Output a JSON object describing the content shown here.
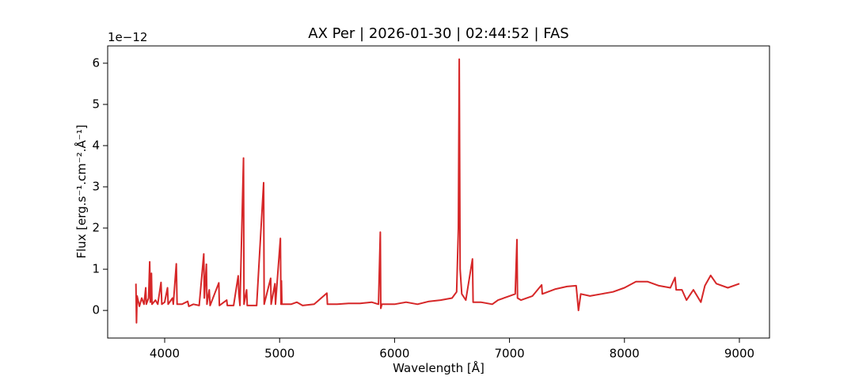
{
  "chart_data": {
    "type": "line",
    "title": "AX Per | 2026-01-30 | 02:44:52 | FAS",
    "x_label": "Wavelength [Å]",
    "y_label": "Flux [erg.s⁻¹.cm⁻².Å⁻¹]",
    "y_offset_label": "1e−12",
    "color": "#d62728",
    "x": [
      3750,
      3755,
      3760,
      3780,
      3800,
      3820,
      3835,
      3840,
      3860,
      3870,
      3875,
      3885,
      3890,
      3920,
      3940,
      3968,
      3975,
      4000,
      4025,
      4030,
      4068,
      4075,
      4101,
      4108,
      4150,
      4200,
      4210,
      4250,
      4300,
      4340,
      4345,
      4363,
      4368,
      4388,
      4395,
      4471,
      4476,
      4540,
      4545,
      4600,
      4640,
      4645,
      4655,
      4686,
      4690,
      4713,
      4718,
      4800,
      4861,
      4866,
      4922,
      4926,
      4959,
      4964,
      5007,
      5012,
      5016,
      5020,
      5100,
      5150,
      5200,
      5300,
      5411,
      5416,
      5500,
      5600,
      5700,
      5800,
      5860,
      5876,
      5880,
      5890,
      6000,
      6100,
      6200,
      6300,
      6400,
      6500,
      6540,
      6555,
      6563,
      6570,
      6585,
      6620,
      6678,
      6683,
      6750,
      6850,
      6900,
      7000,
      7050,
      7065,
      7070,
      7100,
      7200,
      7280,
      7285,
      7400,
      7500,
      7580,
      7600,
      7620,
      7700,
      7800,
      7900,
      8000,
      8100,
      8200,
      8300,
      8400,
      8440,
      8450,
      8500,
      8540,
      8600,
      8665,
      8700,
      8750,
      8800,
      8900,
      9000
    ],
    "values": [
      0.65,
      -0.3,
      0.35,
      0.1,
      0.3,
      0.15,
      0.55,
      0.15,
      0.3,
      1.18,
      0.2,
      0.9,
      0.15,
      0.25,
      0.15,
      0.68,
      0.15,
      0.2,
      0.55,
      0.15,
      0.3,
      0.15,
      1.13,
      0.15,
      0.15,
      0.22,
      0.1,
      0.15,
      0.12,
      1.37,
      0.3,
      1.12,
      0.15,
      0.5,
      0.12,
      0.67,
      0.12,
      0.25,
      0.12,
      0.12,
      0.84,
      0.4,
      0.12,
      3.7,
      0.15,
      0.5,
      0.12,
      0.12,
      3.1,
      0.15,
      0.78,
      0.15,
      0.65,
      0.15,
      1.75,
      0.15,
      0.72,
      0.15,
      0.15,
      0.2,
      0.12,
      0.15,
      0.42,
      0.15,
      0.15,
      0.17,
      0.17,
      0.2,
      0.15,
      1.9,
      0.05,
      0.15,
      0.15,
      0.2,
      0.15,
      0.22,
      0.25,
      0.3,
      0.45,
      2.0,
      6.1,
      1.0,
      0.4,
      0.25,
      1.25,
      0.2,
      0.2,
      0.15,
      0.25,
      0.35,
      0.4,
      1.72,
      0.3,
      0.25,
      0.35,
      0.62,
      0.4,
      0.52,
      0.58,
      0.6,
      0.0,
      0.4,
      0.35,
      0.4,
      0.45,
      0.55,
      0.7,
      0.7,
      0.6,
      0.55,
      0.8,
      0.5,
      0.5,
      0.25,
      0.5,
      0.2,
      0.6,
      0.85,
      0.65,
      0.55,
      0.65
    ],
    "xlim": [
      3504,
      9262
    ],
    "ylim": [
      -0.67,
      6.42
    ],
    "xticks": [
      4000,
      5000,
      6000,
      7000,
      8000,
      9000
    ],
    "yticks": [
      0,
      1,
      2,
      3,
      4,
      5,
      6
    ]
  }
}
